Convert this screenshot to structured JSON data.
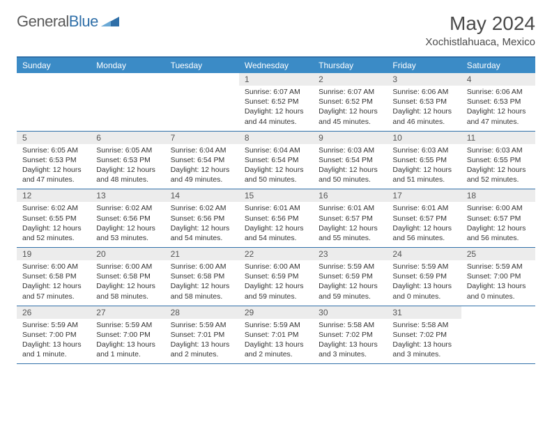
{
  "brand": {
    "general": "General",
    "blue": "Blue"
  },
  "title": "May 2024",
  "location": "Xochistlahuaca, Mexico",
  "daynames": [
    "Sunday",
    "Monday",
    "Tuesday",
    "Wednesday",
    "Thursday",
    "Friday",
    "Saturday"
  ],
  "colors": {
    "header_bar": "#3b8bc6",
    "border": "#2f6fa8",
    "daynum_bg": "#ececec",
    "text": "#333333",
    "title_text": "#4a4a4a"
  },
  "weeks": [
    [
      {
        "n": "",
        "sunrise": "",
        "sunset": "",
        "daylight": ""
      },
      {
        "n": "",
        "sunrise": "",
        "sunset": "",
        "daylight": ""
      },
      {
        "n": "",
        "sunrise": "",
        "sunset": "",
        "daylight": ""
      },
      {
        "n": "1",
        "sunrise": "Sunrise: 6:07 AM",
        "sunset": "Sunset: 6:52 PM",
        "daylight": "Daylight: 12 hours and 44 minutes."
      },
      {
        "n": "2",
        "sunrise": "Sunrise: 6:07 AM",
        "sunset": "Sunset: 6:52 PM",
        "daylight": "Daylight: 12 hours and 45 minutes."
      },
      {
        "n": "3",
        "sunrise": "Sunrise: 6:06 AM",
        "sunset": "Sunset: 6:53 PM",
        "daylight": "Daylight: 12 hours and 46 minutes."
      },
      {
        "n": "4",
        "sunrise": "Sunrise: 6:06 AM",
        "sunset": "Sunset: 6:53 PM",
        "daylight": "Daylight: 12 hours and 47 minutes."
      }
    ],
    [
      {
        "n": "5",
        "sunrise": "Sunrise: 6:05 AM",
        "sunset": "Sunset: 6:53 PM",
        "daylight": "Daylight: 12 hours and 47 minutes."
      },
      {
        "n": "6",
        "sunrise": "Sunrise: 6:05 AM",
        "sunset": "Sunset: 6:53 PM",
        "daylight": "Daylight: 12 hours and 48 minutes."
      },
      {
        "n": "7",
        "sunrise": "Sunrise: 6:04 AM",
        "sunset": "Sunset: 6:54 PM",
        "daylight": "Daylight: 12 hours and 49 minutes."
      },
      {
        "n": "8",
        "sunrise": "Sunrise: 6:04 AM",
        "sunset": "Sunset: 6:54 PM",
        "daylight": "Daylight: 12 hours and 50 minutes."
      },
      {
        "n": "9",
        "sunrise": "Sunrise: 6:03 AM",
        "sunset": "Sunset: 6:54 PM",
        "daylight": "Daylight: 12 hours and 50 minutes."
      },
      {
        "n": "10",
        "sunrise": "Sunrise: 6:03 AM",
        "sunset": "Sunset: 6:55 PM",
        "daylight": "Daylight: 12 hours and 51 minutes."
      },
      {
        "n": "11",
        "sunrise": "Sunrise: 6:03 AM",
        "sunset": "Sunset: 6:55 PM",
        "daylight": "Daylight: 12 hours and 52 minutes."
      }
    ],
    [
      {
        "n": "12",
        "sunrise": "Sunrise: 6:02 AM",
        "sunset": "Sunset: 6:55 PM",
        "daylight": "Daylight: 12 hours and 52 minutes."
      },
      {
        "n": "13",
        "sunrise": "Sunrise: 6:02 AM",
        "sunset": "Sunset: 6:56 PM",
        "daylight": "Daylight: 12 hours and 53 minutes."
      },
      {
        "n": "14",
        "sunrise": "Sunrise: 6:02 AM",
        "sunset": "Sunset: 6:56 PM",
        "daylight": "Daylight: 12 hours and 54 minutes."
      },
      {
        "n": "15",
        "sunrise": "Sunrise: 6:01 AM",
        "sunset": "Sunset: 6:56 PM",
        "daylight": "Daylight: 12 hours and 54 minutes."
      },
      {
        "n": "16",
        "sunrise": "Sunrise: 6:01 AM",
        "sunset": "Sunset: 6:57 PM",
        "daylight": "Daylight: 12 hours and 55 minutes."
      },
      {
        "n": "17",
        "sunrise": "Sunrise: 6:01 AM",
        "sunset": "Sunset: 6:57 PM",
        "daylight": "Daylight: 12 hours and 56 minutes."
      },
      {
        "n": "18",
        "sunrise": "Sunrise: 6:00 AM",
        "sunset": "Sunset: 6:57 PM",
        "daylight": "Daylight: 12 hours and 56 minutes."
      }
    ],
    [
      {
        "n": "19",
        "sunrise": "Sunrise: 6:00 AM",
        "sunset": "Sunset: 6:58 PM",
        "daylight": "Daylight: 12 hours and 57 minutes."
      },
      {
        "n": "20",
        "sunrise": "Sunrise: 6:00 AM",
        "sunset": "Sunset: 6:58 PM",
        "daylight": "Daylight: 12 hours and 58 minutes."
      },
      {
        "n": "21",
        "sunrise": "Sunrise: 6:00 AM",
        "sunset": "Sunset: 6:58 PM",
        "daylight": "Daylight: 12 hours and 58 minutes."
      },
      {
        "n": "22",
        "sunrise": "Sunrise: 6:00 AM",
        "sunset": "Sunset: 6:59 PM",
        "daylight": "Daylight: 12 hours and 59 minutes."
      },
      {
        "n": "23",
        "sunrise": "Sunrise: 5:59 AM",
        "sunset": "Sunset: 6:59 PM",
        "daylight": "Daylight: 12 hours and 59 minutes."
      },
      {
        "n": "24",
        "sunrise": "Sunrise: 5:59 AM",
        "sunset": "Sunset: 6:59 PM",
        "daylight": "Daylight: 13 hours and 0 minutes."
      },
      {
        "n": "25",
        "sunrise": "Sunrise: 5:59 AM",
        "sunset": "Sunset: 7:00 PM",
        "daylight": "Daylight: 13 hours and 0 minutes."
      }
    ],
    [
      {
        "n": "26",
        "sunrise": "Sunrise: 5:59 AM",
        "sunset": "Sunset: 7:00 PM",
        "daylight": "Daylight: 13 hours and 1 minute."
      },
      {
        "n": "27",
        "sunrise": "Sunrise: 5:59 AM",
        "sunset": "Sunset: 7:00 PM",
        "daylight": "Daylight: 13 hours and 1 minute."
      },
      {
        "n": "28",
        "sunrise": "Sunrise: 5:59 AM",
        "sunset": "Sunset: 7:01 PM",
        "daylight": "Daylight: 13 hours and 2 minutes."
      },
      {
        "n": "29",
        "sunrise": "Sunrise: 5:59 AM",
        "sunset": "Sunset: 7:01 PM",
        "daylight": "Daylight: 13 hours and 2 minutes."
      },
      {
        "n": "30",
        "sunrise": "Sunrise: 5:58 AM",
        "sunset": "Sunset: 7:02 PM",
        "daylight": "Daylight: 13 hours and 3 minutes."
      },
      {
        "n": "31",
        "sunrise": "Sunrise: 5:58 AM",
        "sunset": "Sunset: 7:02 PM",
        "daylight": "Daylight: 13 hours and 3 minutes."
      },
      {
        "n": "",
        "sunrise": "",
        "sunset": "",
        "daylight": ""
      }
    ]
  ]
}
